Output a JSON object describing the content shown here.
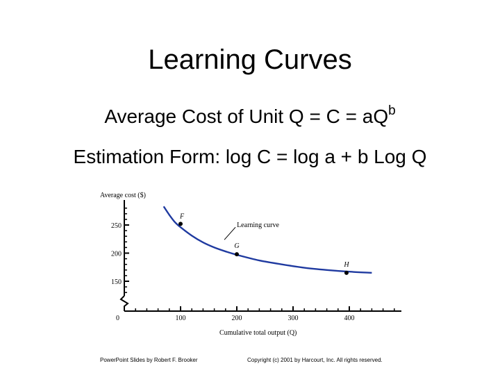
{
  "slide": {
    "title": "Learning Curves",
    "formula_prefix": "Average Cost of Unit Q = C = aQ",
    "formula_exponent": "b",
    "estimation_form": "Estimation Form: log C = log a + b Log Q"
  },
  "footer": {
    "left": "PowerPoint Slides by Robert F. Brooker",
    "right": "Copyright (c) 2001 by Harcourt, Inc. All rights reserved."
  },
  "chart_data": {
    "type": "line",
    "ylabel": "Average cost ($)",
    "xlabel": "Cumulative total output (Q)",
    "x_ticks": [
      0,
      100,
      200,
      300,
      400
    ],
    "y_ticks": [
      150,
      200,
      250
    ],
    "y_origin_label": "0",
    "xlim": [
      0,
      500
    ],
    "y_visible_range": [
      120,
      290
    ],
    "axis_break": true,
    "grid": false,
    "curve_label": "Learning curve",
    "curve_color": "#1f3aa0",
    "series": [
      {
        "x": [
          70,
          80,
          90,
          100,
          120,
          140,
          160,
          180,
          200,
          240,
          280,
          320,
          360,
          400,
          440
        ],
        "y": [
          283,
          268,
          255,
          246,
          231,
          219,
          210,
          203,
          197,
          187,
          180,
          174,
          170,
          167,
          165
        ]
      }
    ],
    "points": [
      {
        "label": "F",
        "x": 100,
        "y": 252
      },
      {
        "label": "G",
        "x": 200,
        "y": 198
      },
      {
        "label": "H",
        "x": 395,
        "y": 165
      }
    ]
  }
}
